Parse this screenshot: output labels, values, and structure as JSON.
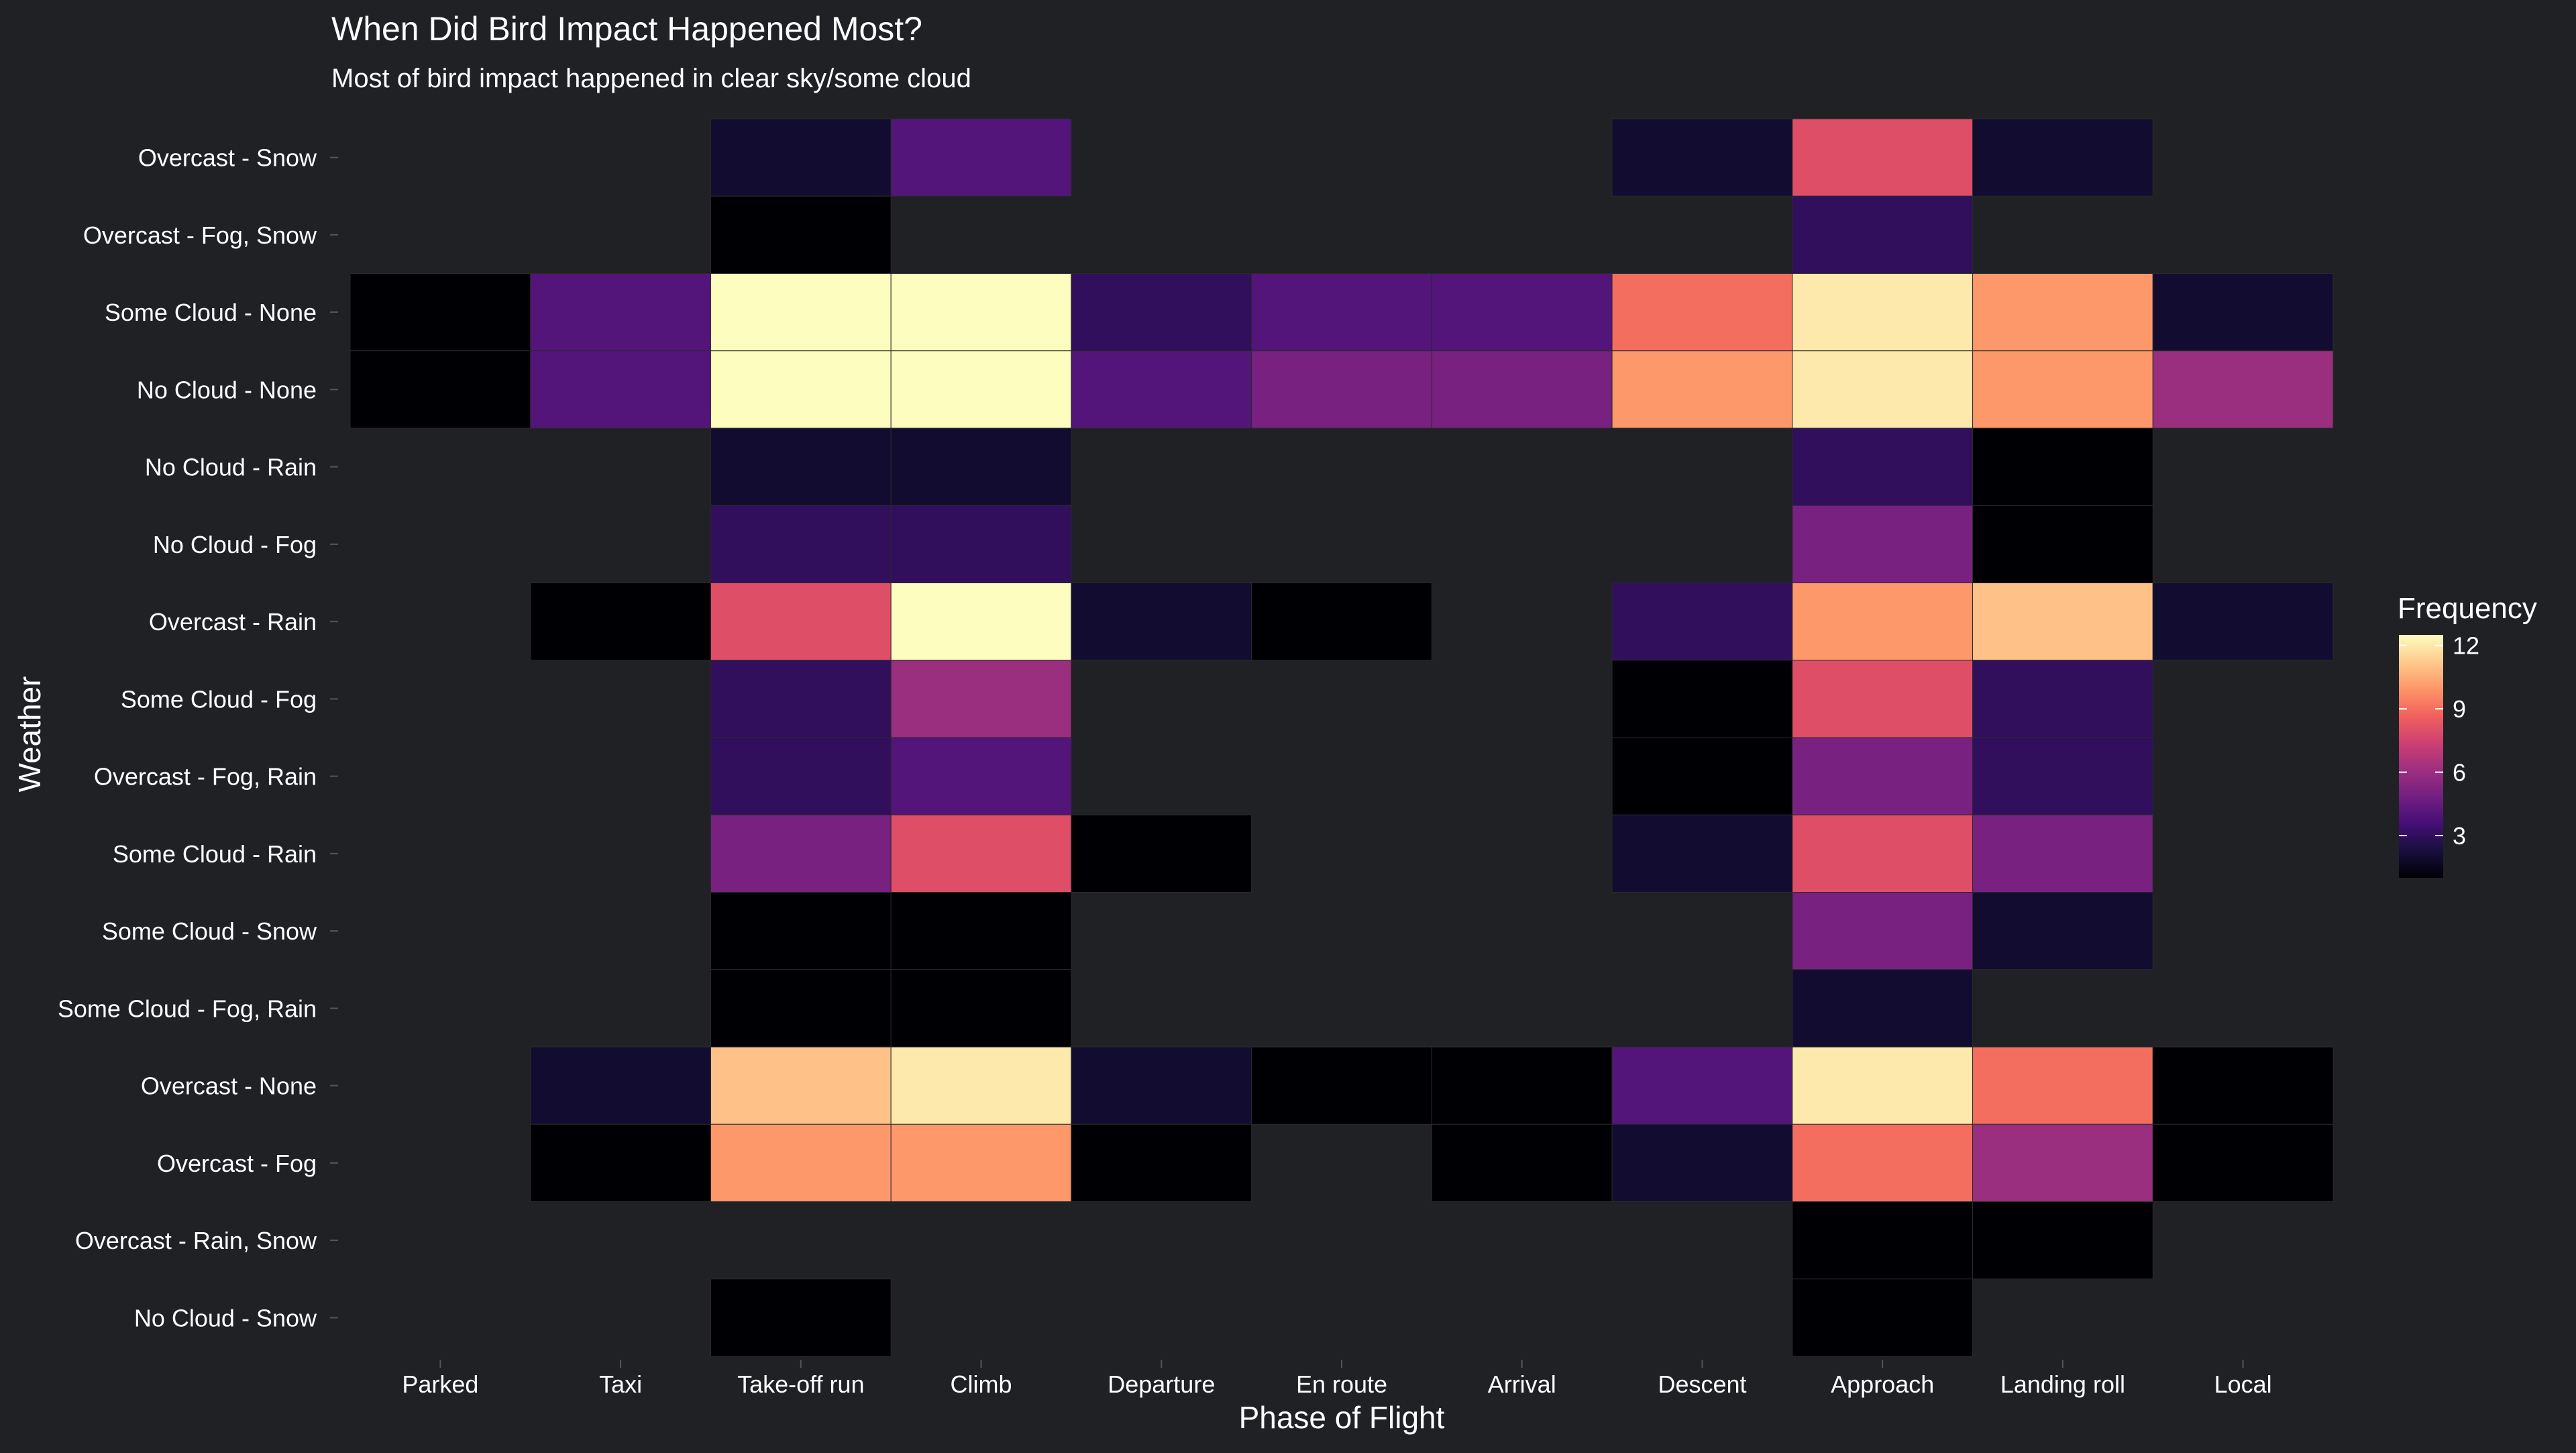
{
  "chart_data": {
    "type": "heatmap",
    "title": "When Did Bird Impact Happened Most?",
    "subtitle": "Most of bird impact happened in clear sky/some cloud",
    "xlabel": "Phase of Flight",
    "ylabel": "Weather",
    "x_categories": [
      "Parked",
      "Taxi",
      "Take-off run",
      "Climb",
      "Departure",
      "En route",
      "Arrival",
      "Descent",
      "Approach",
      "Landing roll",
      "Local"
    ],
    "y_categories": [
      "Overcast - Snow",
      "Overcast - Fog, Snow",
      "Some Cloud - None",
      "No Cloud - None",
      "No Cloud - Rain",
      "No Cloud - Fog",
      "Overcast - Rain",
      "Some Cloud - Fog",
      "Overcast - Fog, Rain",
      "Some Cloud - Rain",
      "Some Cloud - Snow",
      "Some Cloud - Fog, Rain",
      "Overcast - None",
      "Overcast - Fog",
      "Overcast - Rain, Snow",
      "No Cloud - Snow"
    ],
    "values": [
      [
        null,
        null,
        2,
        4,
        null,
        null,
        null,
        2,
        8,
        2,
        null
      ],
      [
        null,
        null,
        1,
        null,
        null,
        null,
        null,
        null,
        3,
        null,
        null
      ],
      [
        1,
        4,
        13,
        13,
        3,
        4,
        4,
        9,
        12,
        10,
        2
      ],
      [
        1,
        4,
        13,
        13,
        4,
        5,
        5,
        10,
        12,
        10,
        6
      ],
      [
        null,
        null,
        2,
        2,
        null,
        null,
        null,
        null,
        3,
        1,
        null
      ],
      [
        null,
        null,
        3,
        3,
        null,
        null,
        null,
        null,
        5,
        1,
        null
      ],
      [
        null,
        1,
        8,
        13,
        2,
        1,
        null,
        3,
        10,
        11,
        2
      ],
      [
        null,
        null,
        3,
        6,
        null,
        null,
        null,
        1,
        8,
        3,
        null
      ],
      [
        null,
        null,
        3,
        4,
        null,
        null,
        null,
        1,
        5,
        3,
        null
      ],
      [
        null,
        null,
        5,
        8,
        1,
        null,
        null,
        2,
        8,
        5,
        null
      ],
      [
        null,
        null,
        1,
        1,
        null,
        null,
        null,
        null,
        5,
        2,
        null
      ],
      [
        null,
        null,
        1,
        1,
        null,
        null,
        null,
        null,
        2,
        null,
        null
      ],
      [
        null,
        2,
        11,
        12,
        2,
        1,
        1,
        4,
        12,
        9,
        1
      ],
      [
        null,
        1,
        10,
        10,
        1,
        null,
        1,
        2,
        9,
        6,
        1
      ],
      [
        null,
        null,
        null,
        null,
        null,
        null,
        null,
        null,
        1,
        1,
        null
      ],
      [
        null,
        null,
        1,
        null,
        null,
        null,
        null,
        null,
        1,
        null,
        null
      ]
    ],
    "legend": {
      "title": "Frequency",
      "position": "right",
      "min": 1,
      "max": 12.5,
      "ticks": [
        3,
        6,
        9,
        12
      ],
      "palette": "magma",
      "colors": [
        "#000004",
        "#180f3d",
        "#440f76",
        "#721f81",
        "#9e2f7f",
        "#cd4071",
        "#f1605d",
        "#fd9668",
        "#feca8d",
        "#fcfdbf"
      ]
    },
    "grid": false,
    "background_color": "#1f2125",
    "text_color": "#ffffff"
  }
}
